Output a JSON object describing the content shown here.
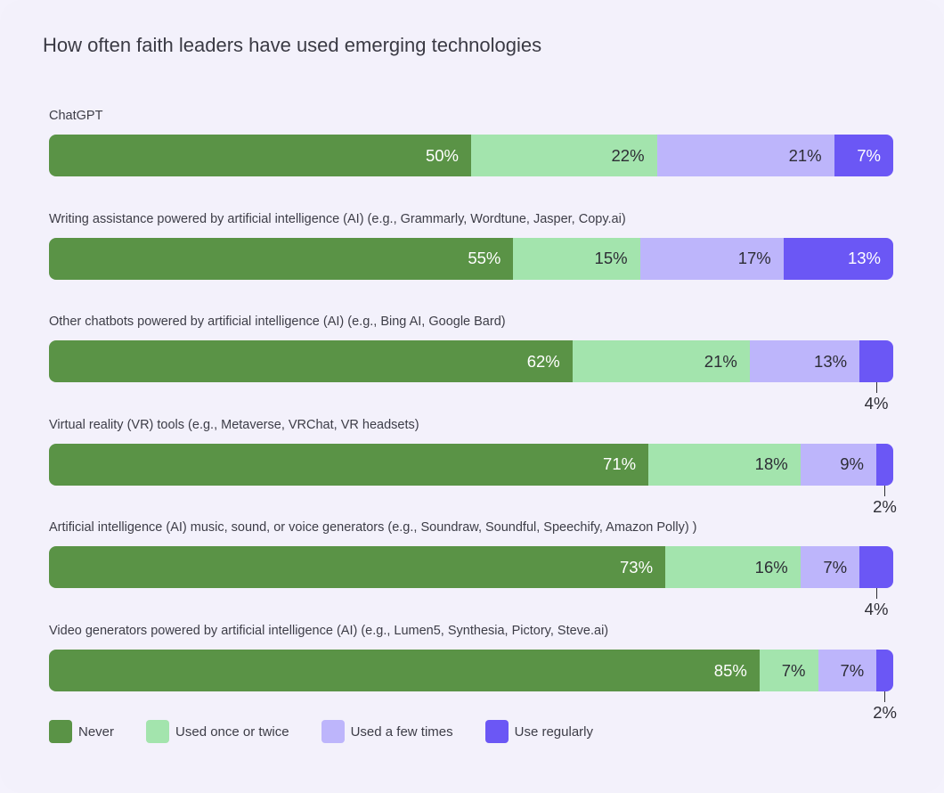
{
  "chart_data": {
    "type": "bar",
    "orientation": "horizontal-stacked-100",
    "title": "How often faith leaders have used emerging technologies",
    "categories": [
      "ChatGPT",
      "Writing assistance powered by artificial intelligence (AI) (e.g., Grammarly, Wordtune, Jasper, Copy.ai)",
      "Other chatbots powered by artificial intelligence (AI) (e.g., Bing AI, Google Bard)",
      "Virtual reality (VR) tools (e.g., Metaverse, VRChat, VR headsets)",
      "Artificial intelligence (AI) music, sound, or voice generators (e.g., Soundraw, Soundful, Speechify, Amazon Polly) )",
      "Video generators powered by artificial intelligence (AI) (e.g., Lumen5, Synthesia, Pictory, Steve.ai)"
    ],
    "series": [
      {
        "name": "Never",
        "color": "#5a9346",
        "text_color": "#ffffff",
        "values": [
          50,
          55,
          62,
          71,
          73,
          85
        ]
      },
      {
        "name": "Used once or twice",
        "color": "#a3e4ad",
        "text_color": "#2d2d35",
        "values": [
          22,
          15,
          21,
          18,
          16,
          7
        ]
      },
      {
        "name": "Used a few times",
        "color": "#bdb5fb",
        "text_color": "#2d2d35",
        "values": [
          21,
          17,
          13,
          9,
          7,
          7
        ]
      },
      {
        "name": "Use regularly",
        "color": "#6b57f5",
        "text_color": "#ffffff",
        "values": [
          7,
          13,
          4,
          2,
          4,
          2
        ]
      }
    ],
    "data_labels": [
      [
        "50%",
        "22%",
        "21%",
        "7%"
      ],
      [
        "55%",
        "15%",
        "17%",
        "13%"
      ],
      [
        "62%",
        "21%",
        "13%",
        "4%"
      ],
      [
        "71%",
        "18%",
        "9%",
        "2%"
      ],
      [
        "73%",
        "16%",
        "7%",
        "4%"
      ],
      [
        "85%",
        "7%",
        "7%",
        "2%"
      ]
    ],
    "legend_position": "bottom-left",
    "grid": false
  }
}
